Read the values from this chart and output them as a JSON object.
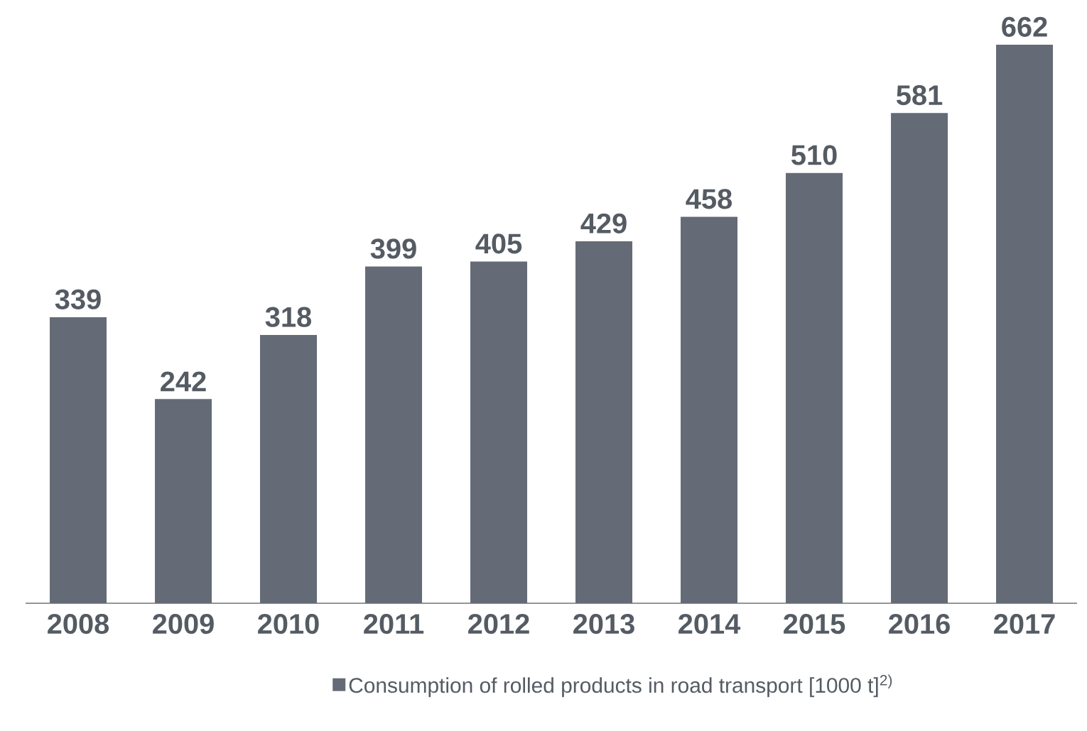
{
  "chart_data": {
    "type": "bar",
    "categories": [
      "2008",
      "2009",
      "2010",
      "2011",
      "2012",
      "2013",
      "2014",
      "2015",
      "2016",
      "2017"
    ],
    "series": [
      {
        "name": "Consumption of rolled products in road transport [1000 t]$^{2)}$",
        "color": "#646b76",
        "values": [
          339,
          242,
          318,
          399,
          405,
          429,
          458,
          510,
          581,
          662
        ]
      }
    ],
    "data_labels": true,
    "legend": "bottom"
  }
}
